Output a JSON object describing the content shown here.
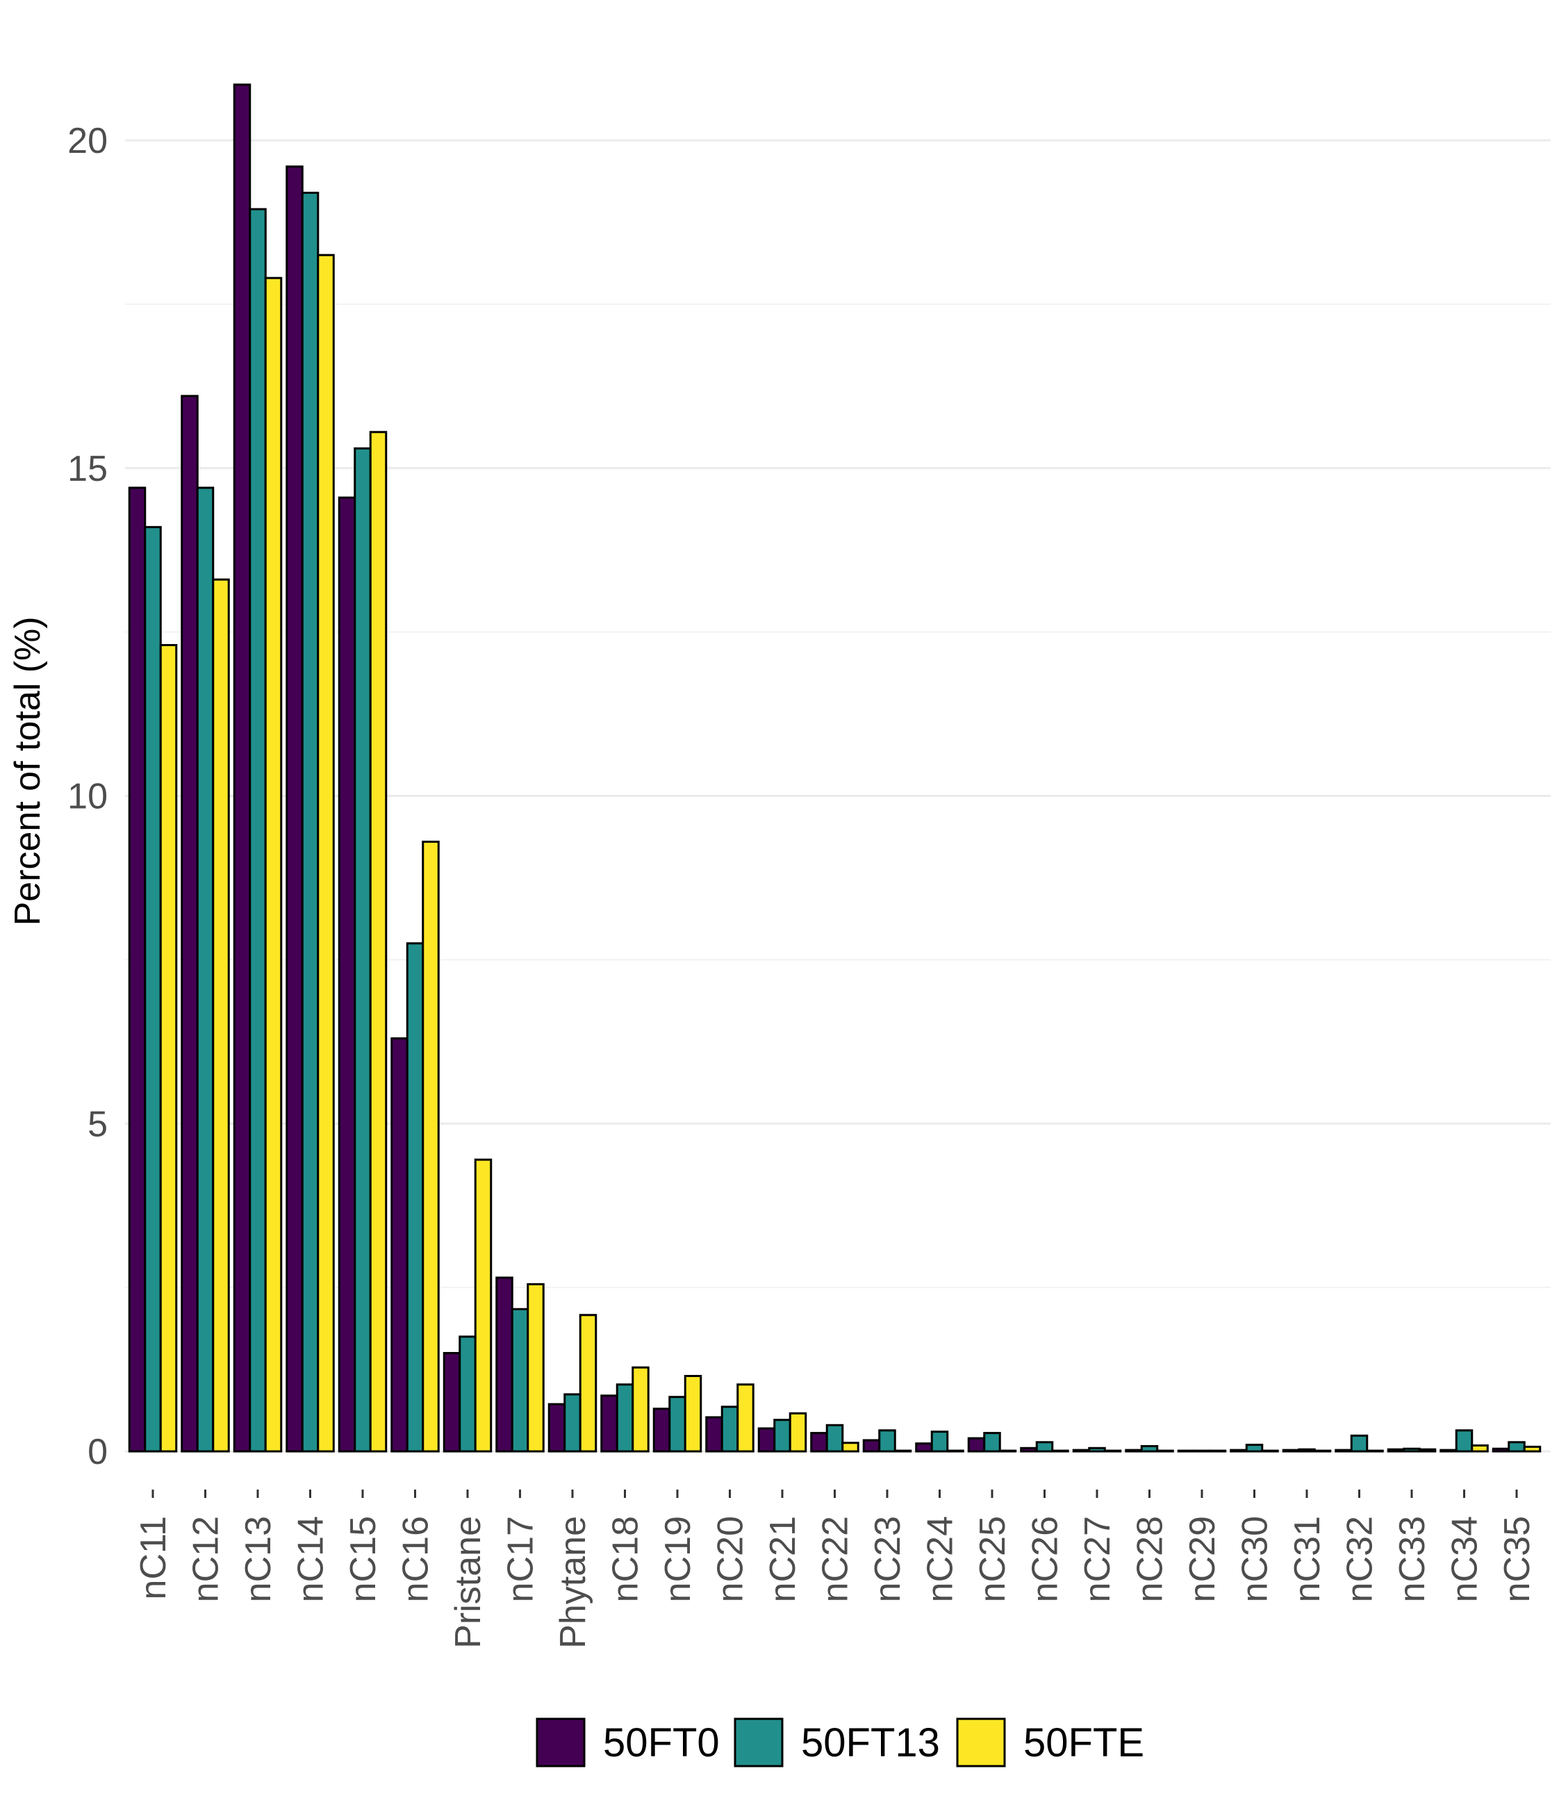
{
  "colors": {
    "50FT0": "#440154",
    "50FT13": "#21908C",
    "50FTE": "#FDE725"
  },
  "chart_data": {
    "type": "bar",
    "title": "",
    "xlabel": "",
    "ylabel": "Percent of total (%)",
    "ylim": [
      0,
      21.5
    ],
    "yticks": [
      0,
      5,
      10,
      15,
      20
    ],
    "grid": true,
    "legend_position": "bottom",
    "categories": [
      "nC11",
      "nC12",
      "nC13",
      "nC14",
      "nC15",
      "nC16",
      "Pristane",
      "nC17",
      "Phytane",
      "nC18",
      "nC19",
      "nC20",
      "nC21",
      "nC22",
      "nC23",
      "nC24",
      "nC25",
      "nC26",
      "nC27",
      "nC28",
      "nC29",
      "nC30",
      "nC31",
      "nC32",
      "nC33",
      "nC34",
      "nC35"
    ],
    "series": [
      {
        "name": "50FT0",
        "color": "#440154",
        "values": [
          14.7,
          16.1,
          20.85,
          19.6,
          14.55,
          6.3,
          1.5,
          2.65,
          0.72,
          0.85,
          0.65,
          0.52,
          0.35,
          0.28,
          0.17,
          0.12,
          0.2,
          0.05,
          0.02,
          0.02,
          0.01,
          0.02,
          0.02,
          0.02,
          0.03,
          0.02,
          0.04
        ]
      },
      {
        "name": "50FT13",
        "color": "#21908C",
        "values": [
          14.1,
          14.7,
          18.95,
          19.2,
          15.3,
          7.75,
          1.75,
          2.17,
          0.87,
          1.02,
          0.83,
          0.68,
          0.48,
          0.4,
          0.32,
          0.3,
          0.28,
          0.14,
          0.05,
          0.08,
          0.01,
          0.1,
          0.03,
          0.24,
          0.04,
          0.32,
          0.14
        ]
      },
      {
        "name": "50FTE",
        "color": "#FDE725",
        "values": [
          12.3,
          13.3,
          17.9,
          18.25,
          15.55,
          9.3,
          4.45,
          2.55,
          2.08,
          1.28,
          1.15,
          1.02,
          0.58,
          0.13,
          0.01,
          0.01,
          0.01,
          0.01,
          0.01,
          0.01,
          0.01,
          0.01,
          0.01,
          0.01,
          0.03,
          0.09,
          0.07
        ]
      }
    ]
  }
}
